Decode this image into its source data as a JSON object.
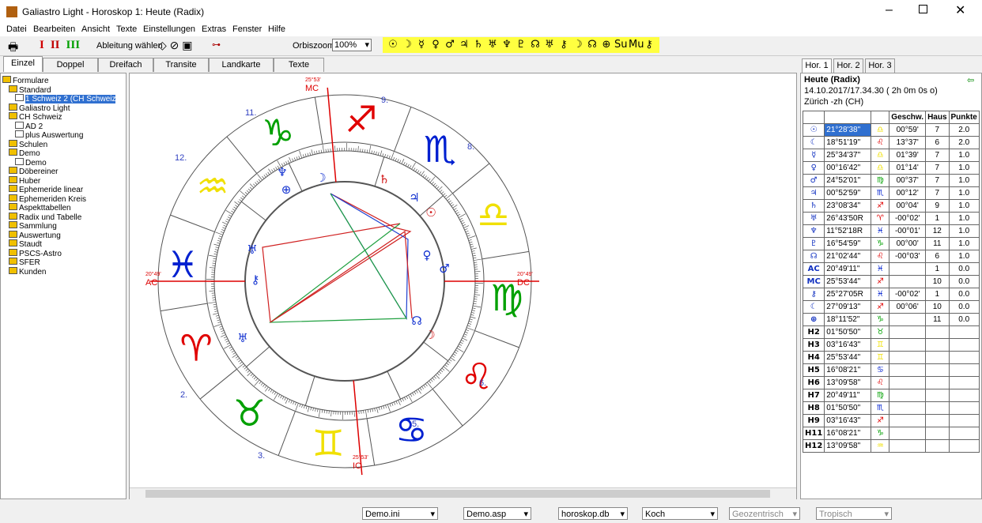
{
  "window": {
    "title": "Galiastro Light - Horoskop 1: Heute (Radix)"
  },
  "menu": [
    "Datei",
    "Bearbeiten",
    "Ansicht",
    "Texte",
    "Einstellungen",
    "Extras",
    "Fenster",
    "Hilfe"
  ],
  "toolbar": {
    "levels": [
      "I",
      "II",
      "III"
    ],
    "level_colors": [
      "#d00000",
      "#c00000",
      "#00a000"
    ],
    "derive": "Ableitung wählen",
    "orbis_label": "Orbiszoom:",
    "orbis_value": "100%",
    "planet_buttons": [
      "☉",
      "☽",
      "☿",
      "♀",
      "♂",
      "♃",
      "♄",
      "♅",
      "♆",
      "♇",
      "☊",
      "♅",
      "⚷",
      "☽",
      "☊",
      "⊕",
      "Su",
      "Mu",
      "⚷"
    ]
  },
  "tabs": [
    "Einzel",
    "Doppel",
    "Dreifach",
    "Transite",
    "Landkarte",
    "Texte"
  ],
  "tree": [
    {
      "label": "Formulare",
      "children": [
        {
          "label": "Standard",
          "children": [
            {
              "label": "1 Schweiz 2 (CH Schweiz",
              "selected": true
            }
          ]
        },
        {
          "label": "Galiastro Light"
        },
        {
          "label": "CH Schweiz",
          "children": [
            {
              "label": "AD 2"
            },
            {
              "label": "plus Auswertung"
            }
          ]
        },
        {
          "label": "Schulen"
        },
        {
          "label": "Demo",
          "children": [
            {
              "label": "Demo"
            }
          ]
        },
        {
          "label": "Döbereiner"
        },
        {
          "label": "Huber"
        },
        {
          "label": "Ephemeride linear"
        },
        {
          "label": "Ephemeriden Kreis"
        },
        {
          "label": "Aspekttabellen"
        },
        {
          "label": "Radix und Tabelle"
        },
        {
          "label": "Sammlung"
        },
        {
          "label": "Auswertung"
        },
        {
          "label": "Staudt"
        },
        {
          "label": "PSCS-Astro"
        },
        {
          "label": "SFER"
        },
        {
          "label": "Kunden"
        }
      ]
    }
  ],
  "wheel": {
    "signs": [
      "♈",
      "♉",
      "♊",
      "♋",
      "♌",
      "♍",
      "♎",
      "♏",
      "♐",
      "♑",
      "♒",
      "♓"
    ],
    "axes": [
      {
        "label": "AC",
        "deg": "20°49'"
      },
      {
        "label": "MC",
        "deg": "25°53'"
      },
      {
        "label": "DC",
        "deg": "20°49'"
      },
      {
        "label": "IC",
        "deg": "25°53'"
      }
    ],
    "houses": [
      "2.",
      "3.",
      "5.",
      "6.",
      "8.",
      "9.",
      "11.",
      "12."
    ],
    "planets": [
      {
        "glyph": "♆",
        "color": "#1030d0"
      },
      {
        "glyph": "☽",
        "color": "#1030d0"
      },
      {
        "glyph": "♄",
        "color": "#d01010"
      },
      {
        "glyph": "⊕",
        "color": "#1030d0"
      },
      {
        "glyph": "♃",
        "color": "#1030d0"
      },
      {
        "glyph": "☉",
        "color": "#d01010"
      },
      {
        "glyph": "♀",
        "color": "#1030d0"
      },
      {
        "glyph": "♂",
        "color": "#1030d0"
      },
      {
        "glyph": "♅",
        "color": "#1030d0"
      },
      {
        "glyph": "⚷",
        "color": "#1030d0"
      },
      {
        "glyph": "☊",
        "color": "#1030d0"
      },
      {
        "glyph": "☽",
        "color": "#d01010"
      },
      {
        "glyph": "♅",
        "color": "#1030d0"
      }
    ]
  },
  "sign_colors": {
    "♈": "#e00000",
    "♌": "#e00000",
    "♐": "#e00000",
    "♉": "#00a000",
    "♍": "#00a000",
    "♑": "#00a000",
    "♊": "#f0e000",
    "♎": "#f0e000",
    "♒": "#f0e000",
    "♋": "#0020d0",
    "♏": "#0020d0",
    "♓": "#0020d0"
  },
  "panel": {
    "tabs": [
      "Hor. 1",
      "Hor. 2",
      "Hor. 3"
    ],
    "title": "Heute (Radix)",
    "date": "14.10.2017/17.34.30 ( 2h 0m 0s o)",
    "place": "Zürich -zh (CH)",
    "columns": [
      "Geschw.",
      "Haus",
      "Punkte"
    ],
    "rows": [
      [
        "☉",
        "21°28'38\"",
        "♎",
        "00°59'",
        "7",
        "2.0"
      ],
      [
        "☾",
        "18°51'19\"",
        "♌",
        "13°37'",
        "6",
        "2.0"
      ],
      [
        "☿",
        "25°34'37\"",
        "♎",
        "01°39'",
        "7",
        "1.0"
      ],
      [
        "♀",
        "00°16'42\"",
        "♎",
        "01°14'",
        "7",
        "1.0"
      ],
      [
        "♂",
        "24°52'01\"",
        "♍",
        "00°37'",
        "7",
        "1.0"
      ],
      [
        "♃",
        "00°52'59\"",
        "♏",
        "00°12'",
        "7",
        "1.0"
      ],
      [
        "♄",
        "23°08'34\"",
        "♐",
        "00°04'",
        "9",
        "1.0"
      ],
      [
        "♅",
        "26°43'50R",
        "♈",
        "-00°02'",
        "1",
        "1.0"
      ],
      [
        "♆",
        "11°52'18R",
        "♓",
        "-00°01'",
        "12",
        "1.0"
      ],
      [
        "♇",
        "16°54'59\"",
        "♑",
        "00°00'",
        "11",
        "1.0"
      ],
      [
        "☊",
        "21°02'44\"",
        "♌",
        "-00°03'",
        "6",
        "1.0"
      ],
      [
        "AC",
        "20°49'11\"",
        "♓",
        null,
        "1",
        "0.0"
      ],
      [
        "MC",
        "25°53'44\"",
        "♐",
        null,
        "10",
        "0.0"
      ],
      [
        "⚷",
        "25°27'05R",
        "♓",
        "-00°02'",
        "1",
        "0.0"
      ],
      [
        "☾",
        "27°09'13\"",
        "♐",
        "00°06'",
        "10",
        "0.0"
      ],
      [
        "⊕",
        "18°11'52\"",
        "♑",
        null,
        "11",
        "0.0"
      ],
      [
        "H2",
        "01°50'50\"",
        "♉",
        null,
        null,
        null
      ],
      [
        "H3",
        "03°16'43\"",
        "♊",
        null,
        null,
        null
      ],
      [
        "H4",
        "25°53'44\"",
        "♊",
        null,
        null,
        null
      ],
      [
        "H5",
        "16°08'21\"",
        "♋",
        null,
        null,
        null
      ],
      [
        "H6",
        "13°09'58\"",
        "♌",
        null,
        null,
        null
      ],
      [
        "H7",
        "20°49'11\"",
        "♍",
        null,
        null,
        null
      ],
      [
        "H8",
        "01°50'50\"",
        "♏",
        null,
        null,
        null
      ],
      [
        "H9",
        "03°16'43\"",
        "♐",
        null,
        null,
        null
      ],
      [
        "H11",
        "16°08'21\"",
        "♑",
        null,
        null,
        null
      ],
      [
        "H12",
        "13°09'58\"",
        "♒",
        null,
        null,
        null
      ]
    ]
  },
  "status": [
    "Demo.ini",
    "Demo.asp",
    "horoskop.db",
    "Koch",
    "Geozentrisch",
    "Tropisch"
  ]
}
